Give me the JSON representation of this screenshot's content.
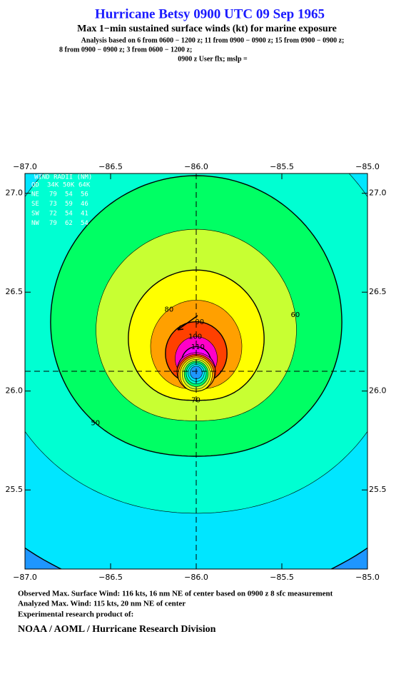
{
  "chart_data": {
    "type": "contour",
    "title": "Hurricane Betsy 0900 UTC 09 Sep 1965",
    "subtitle": "Max 1−min sustained surface winds (kt) for marine exposure",
    "notes": [
      "Analysis based on  6 from 0600 − 1200 z;  11 from 0900 − 0900 z;  15 from 0900 − 0900 z;",
      "8 from 0900 − 0900 z;  3 from 0600 − 1200 z;",
      "0900 z User flx; mslp ="
    ],
    "xlim": [
      -87,
      -85
    ],
    "xticks": [
      {
        "value": -87,
        "label": "−87.0"
      },
      {
        "value": -86.5,
        "label": "−86.5"
      },
      {
        "value": -86,
        "label": "−86.0"
      },
      {
        "value": -85.5,
        "label": "−85.5"
      },
      {
        "value": -85,
        "label": "−85.0"
      }
    ],
    "ylim": [
      25.1,
      27.1
    ],
    "yticks": [
      25.5,
      {
        "value": 26,
        "label": "26.0"
      },
      26.5,
      {
        "value": 27,
        "label": "27.0"
      }
    ],
    "levels": [
      30,
      40,
      50,
      60,
      70,
      80,
      90,
      100,
      110
    ],
    "colors": [
      "#1e96ff",
      "#00e6ff",
      "#00ffd2",
      "#00ff64",
      "#c8ff32",
      "#ffff00",
      "#ffa000",
      "#ff4000",
      "#ff00c8",
      "#ff00ff"
    ],
    "wind_radii": {
      "title": "WIND RADII (NM)",
      "columns": [
        "QD",
        "34K",
        "50K",
        "64K"
      ],
      "rows": [
        [
          "NE",
          "79",
          "54",
          "56"
        ],
        [
          "SE",
          "73",
          "59",
          "46"
        ],
        [
          "SW",
          "72",
          "54",
          "41"
        ],
        [
          "NW",
          "79",
          "62",
          "54"
        ]
      ]
    },
    "footer": [
      "Observed Max. Surface Wind: 116 kts, 16 nm NE of center based on 0900 z 8 sfc measurement",
      "Analyzed Max. Wind: 115 kts, 20 nm NE of center",
      "Experimental research product of:"
    ],
    "credit": "NOAA / AOML / Hurricane Research Division"
  }
}
